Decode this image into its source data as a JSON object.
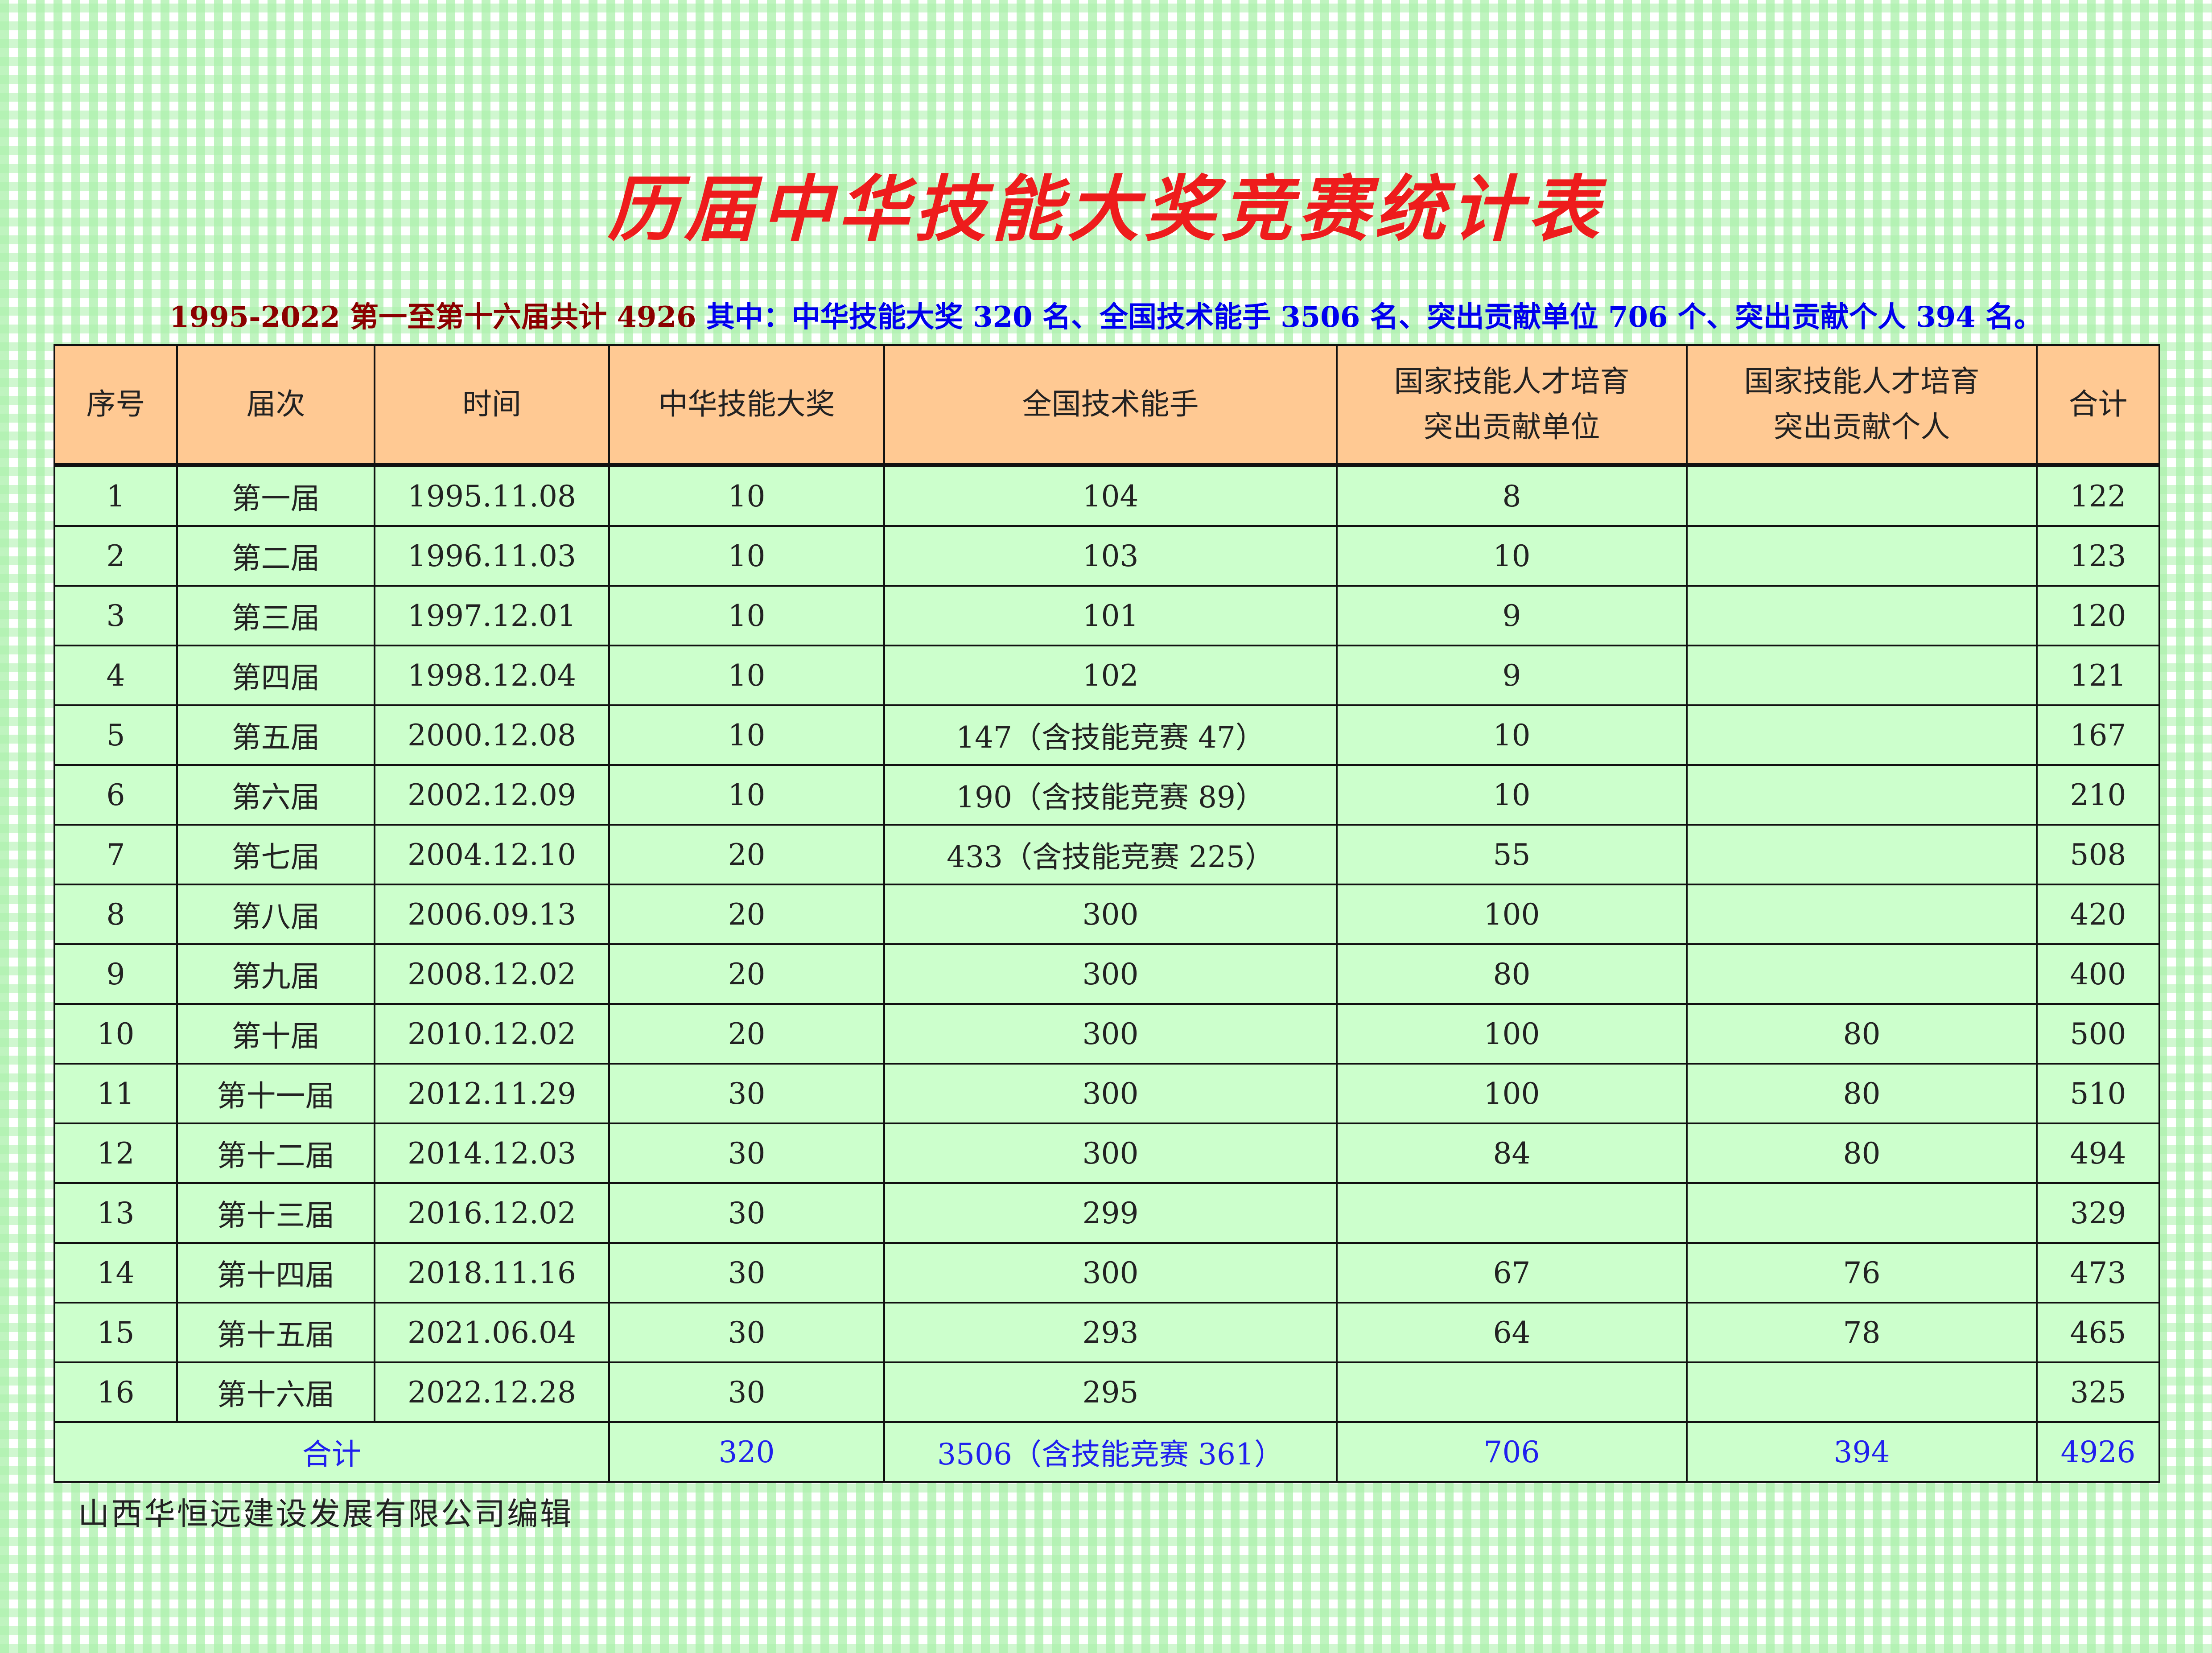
{
  "title": "历届中华技能大奖竞赛统计表",
  "subtitle": {
    "part1": "1995-2022 第一至第十六届共计 4926 ",
    "part2": "其中：中华技能大奖 320 名、全国技术能手 3506 名、突出贡献单位 706 个、突出贡献个人 394 名。"
  },
  "table": {
    "headers": [
      "序号",
      "届次",
      "时间",
      "中华技能大奖",
      "全国技术能手",
      "国家技能人才培育\n突出贡献单位",
      "国家技能人才培育\n突出贡献个人",
      "合计"
    ],
    "rows": [
      [
        "1",
        "第一届",
        "1995.11.08",
        "10",
        "104",
        "8",
        "",
        "122"
      ],
      [
        "2",
        "第二届",
        "1996.11.03",
        "10",
        "103",
        "10",
        "",
        "123"
      ],
      [
        "3",
        "第三届",
        "1997.12.01",
        "10",
        "101",
        "9",
        "",
        "120"
      ],
      [
        "4",
        "第四届",
        "1998.12.04",
        "10",
        "102",
        "9",
        "",
        "121"
      ],
      [
        "5",
        "第五届",
        "2000.12.08",
        "10",
        "147（含技能竞赛 47）",
        "10",
        "",
        "167"
      ],
      [
        "6",
        "第六届",
        "2002.12.09",
        "10",
        "190（含技能竞赛 89）",
        "10",
        "",
        "210"
      ],
      [
        "7",
        "第七届",
        "2004.12.10",
        "20",
        "433（含技能竞赛 225）",
        "55",
        "",
        "508"
      ],
      [
        "8",
        "第八届",
        "2006.09.13",
        "20",
        "300",
        "100",
        "",
        "420"
      ],
      [
        "9",
        "第九届",
        "2008.12.02",
        "20",
        "300",
        "80",
        "",
        "400"
      ],
      [
        "10",
        "第十届",
        "2010.12.02",
        "20",
        "300",
        "100",
        "80",
        "500"
      ],
      [
        "11",
        "第十一届",
        "2012.11.29",
        "30",
        "300",
        "100",
        "80",
        "510"
      ],
      [
        "12",
        "第十二届",
        "2014.12.03",
        "30",
        "300",
        "84",
        "80",
        "494"
      ],
      [
        "13",
        "第十三届",
        "2016.12.02",
        "30",
        "299",
        "",
        "",
        "329"
      ],
      [
        "14",
        "第十四届",
        "2018.11.16",
        "30",
        "300",
        "67",
        "76",
        "473"
      ],
      [
        "15",
        "第十五届",
        "2021.06.04",
        "30",
        "293",
        "64",
        "78",
        "465"
      ],
      [
        "16",
        "第十六届",
        "2022.12.28",
        "30",
        "295",
        "",
        "",
        "325"
      ]
    ],
    "total": [
      "合计",
      "320",
      "3506（含技能竞赛 361）",
      "706",
      "394",
      "4926"
    ]
  },
  "footer": "山西华恒远建设发展有限公司编辑"
}
